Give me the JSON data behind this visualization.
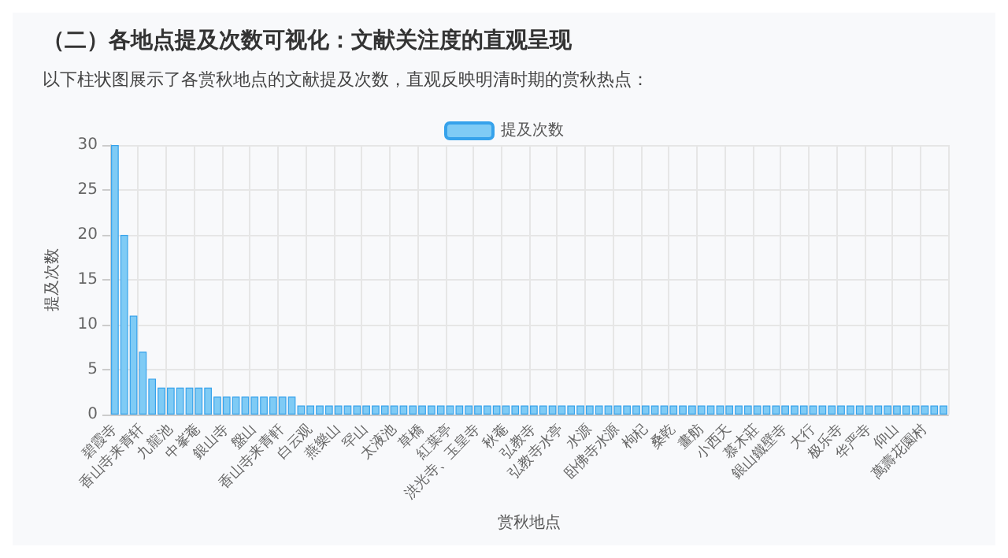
{
  "chart_data": {
    "type": "bar",
    "title": "（二）各地点提及次数可视化：文献关注度的直观呈现",
    "subtitle": "以下柱状图展示了各赏秋地点的文献提及次数，直观反映明清时期的赏秋热点：",
    "xlabel": "赏秋地点",
    "ylabel": "提及次数",
    "categories": [
      "碧霞寺",
      null,
      null,
      "香山寺来青轩",
      null,
      null,
      "九龍池",
      null,
      null,
      "中峯菴",
      null,
      null,
      "銀山寺",
      null,
      null,
      "盤山",
      null,
      null,
      "香山寺来青軒",
      null,
      null,
      "白云观",
      null,
      null,
      "燕樂山",
      null,
      null,
      "罕山",
      null,
      null,
      "太液池",
      null,
      null,
      "草橋",
      null,
      null,
      "紅葉亭",
      null,
      null,
      "洪光寺、玉皇寺",
      null,
      null,
      "秋菴",
      null,
      null,
      "弘教寺",
      null,
      null,
      "弘教寺水亭",
      null,
      null,
      "水源",
      null,
      null,
      "卧佛寺水源",
      null,
      null,
      "枸杞",
      null,
      null,
      "桑乾",
      null,
      null,
      "畫舫",
      null,
      null,
      "小西天",
      null,
      null,
      "慕木莊",
      null,
      null,
      "銀山鐵壁寺",
      null,
      null,
      "大行",
      null,
      null,
      "极乐寺",
      null,
      null,
      "华严寺",
      null,
      null,
      "仰山",
      null,
      null,
      "萬壽花園村",
      null,
      null
    ],
    "series": [
      {
        "name": "提及次数",
        "color": "#7fcbf5",
        "values": [
          30,
          20,
          11,
          7,
          4,
          3,
          3,
          3,
          3,
          3,
          3,
          2,
          2,
          2,
          2,
          2,
          2,
          2,
          2,
          2,
          1,
          1,
          1,
          1,
          1,
          1,
          1,
          1,
          1,
          1,
          1,
          1,
          1,
          1,
          1,
          1,
          1,
          1,
          1,
          1,
          1,
          1,
          1,
          1,
          1,
          1,
          1,
          1,
          1,
          1,
          1,
          1,
          1,
          1,
          1,
          1,
          1,
          1,
          1,
          1,
          1,
          1,
          1,
          1,
          1,
          1,
          1,
          1,
          1,
          1,
          1,
          1,
          1,
          1,
          1,
          1,
          1,
          1,
          1,
          1,
          1,
          1,
          1,
          1,
          1,
          1,
          1,
          1,
          1,
          1
        ]
      }
    ],
    "ylim": [
      0,
      30
    ],
    "yticks": [
      0,
      5,
      10,
      15,
      20,
      25,
      30
    ],
    "grid": true,
    "legend": "top"
  }
}
